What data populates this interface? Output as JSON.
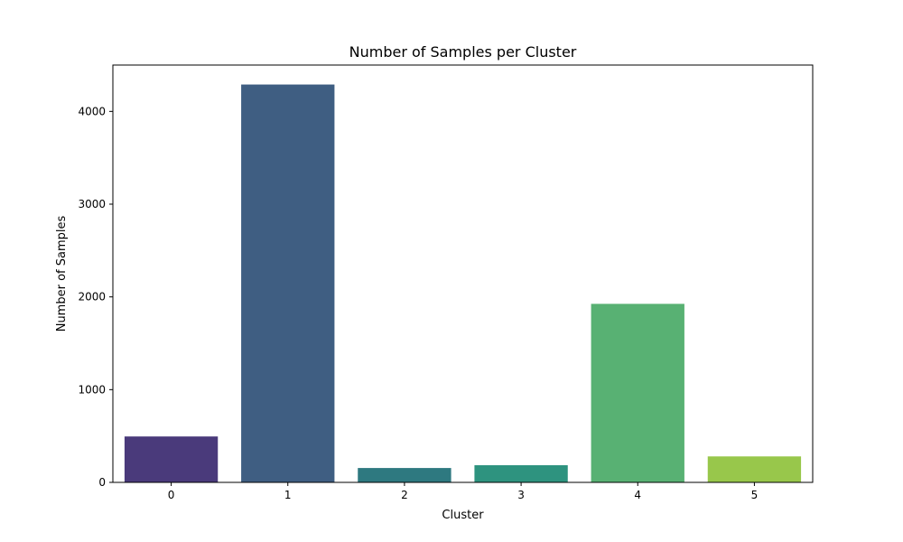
{
  "chart_data": {
    "type": "bar",
    "title": "Number of Samples per Cluster",
    "xlabel": "Cluster",
    "ylabel": "Number of Samples",
    "categories": [
      "0",
      "1",
      "2",
      "3",
      "4",
      "5"
    ],
    "values": [
      495,
      4290,
      155,
      185,
      1925,
      280
    ],
    "colors": [
      "#4a3a7b",
      "#3f5e82",
      "#2e7980",
      "#2e937f",
      "#58b173",
      "#98c74b"
    ],
    "ylim": [
      0,
      4500
    ],
    "yticks": [
      0,
      1000,
      2000,
      3000,
      4000
    ],
    "grid": false,
    "legend": "none"
  }
}
